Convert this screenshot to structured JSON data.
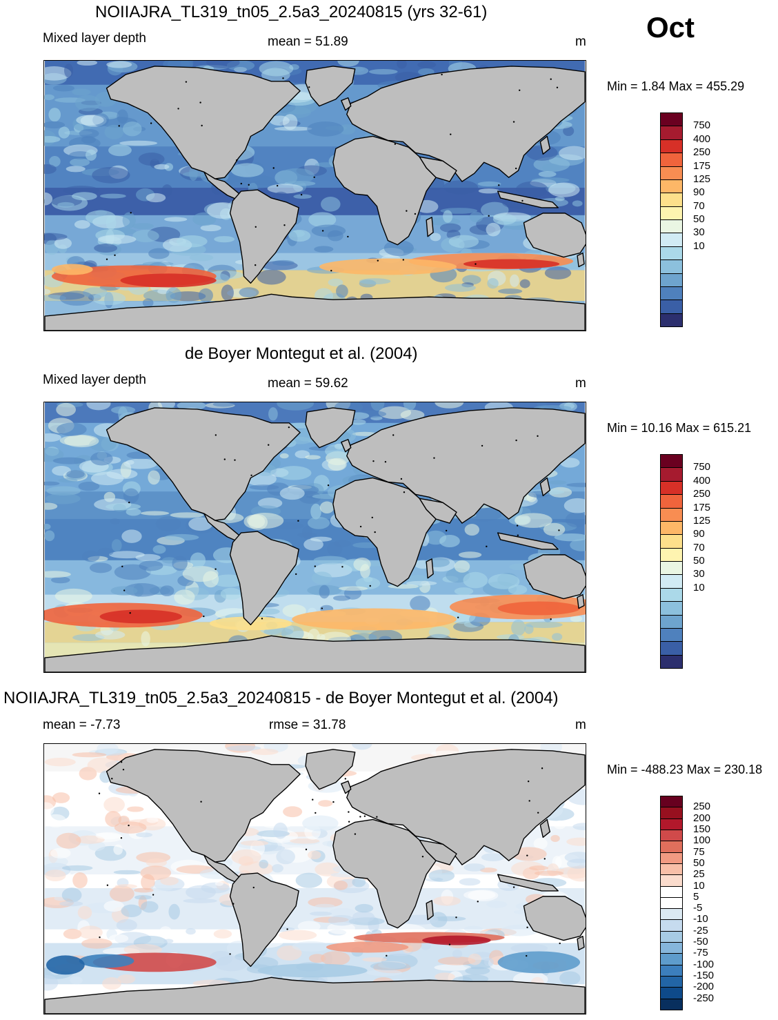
{
  "month": "Oct",
  "panels": [
    {
      "title": "NOIIAJRA_TL319_tn05_2.5a3_20240815 (yrs 32-61)",
      "left_label": "Mixed layer depth",
      "center_label": "mean =  51.89",
      "unit": "m",
      "minmax": "Min =    1.84 Max = 455.29",
      "colorbar_labels": [
        "750",
        "400",
        "250",
        "175",
        "125",
        "90",
        "70",
        "50",
        "30",
        "10"
      ]
    },
    {
      "title": "de Boyer Montegut et al. (2004)",
      "left_label": "Mixed layer depth",
      "center_label": "mean =  59.62",
      "unit": "m",
      "minmax": "Min =  10.16 Max = 615.21",
      "colorbar_labels": [
        "750",
        "400",
        "250",
        "175",
        "125",
        "90",
        "70",
        "50",
        "30",
        "10"
      ]
    },
    {
      "title": "NOIIAJRA_TL319_tn05_2.5a3_20240815 - de Boyer Montegut et al. (2004)",
      "left_label": "mean =  -7.73",
      "center_label": "rmse =  31.78",
      "unit": "m",
      "minmax": "Min = -488.23 Max = 230.18",
      "colorbar_labels": [
        "250",
        "200",
        "150",
        "100",
        "75",
        "50",
        "25",
        "10",
        "5",
        "-5",
        "-10",
        "-25",
        "-50",
        "-75",
        "-100",
        "-150",
        "-200",
        "-250"
      ]
    }
  ],
  "colors": {
    "seq": [
      "#6a0020",
      "#a61b2f",
      "#d73027",
      "#f0643c",
      "#f88d52",
      "#fdb767",
      "#fde08b",
      "#fef4b0",
      "#eaf6e3",
      "#d1ebf4",
      "#abd9e9",
      "#8cc0dd",
      "#6ea4ce",
      "#4f81bd",
      "#3a5fa6",
      "#2c2f6e"
    ],
    "div": [
      "#67001f",
      "#97101f",
      "#b2182b",
      "#d04a4a",
      "#e06f5c",
      "#f19a82",
      "#f8bfa8",
      "#fbdccd",
      "#ffffff",
      "#ffffff",
      "#dceaf3",
      "#c6dbef",
      "#a7cbe4",
      "#86b6db",
      "#5e9ccc",
      "#3c7fbd",
      "#2265a6",
      "#0e4a8a",
      "#082f5e"
    ],
    "land": "#bebebe",
    "coast": "#000000"
  }
}
